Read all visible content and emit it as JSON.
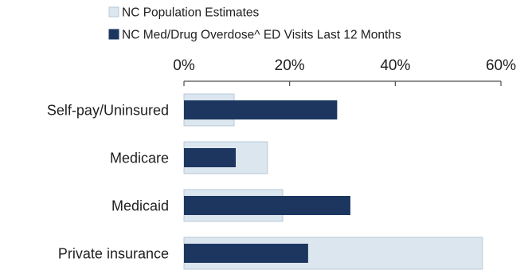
{
  "colors": {
    "population": "#dce6ef",
    "population_border": "#b9cad8",
    "visits": "#1c3660",
    "axis": "#4d4d4d"
  },
  "chart_data": {
    "type": "bar",
    "orientation": "horizontal",
    "title": "",
    "xlabel": "",
    "ylabel": "",
    "xlim": [
      0,
      60
    ],
    "x_ticks": [
      "0%",
      "20%",
      "40%",
      "60%"
    ],
    "x_tick_values": [
      0,
      20,
      40,
      60
    ],
    "x_axis_position": "top",
    "grid": false,
    "legend_position": "top",
    "categories": [
      "Self-pay/Uninsured",
      "Medicare",
      "Medicaid",
      "Private insurance"
    ],
    "series": [
      {
        "name": "NC Population Estimates",
        "values": [
          9.5,
          15.8,
          18.7,
          56.5
        ]
      },
      {
        "name": "NC Med/Drug Overdose^ ED Visits Last 12 Months",
        "values": [
          29.0,
          9.8,
          31.5,
          23.5
        ]
      }
    ]
  }
}
